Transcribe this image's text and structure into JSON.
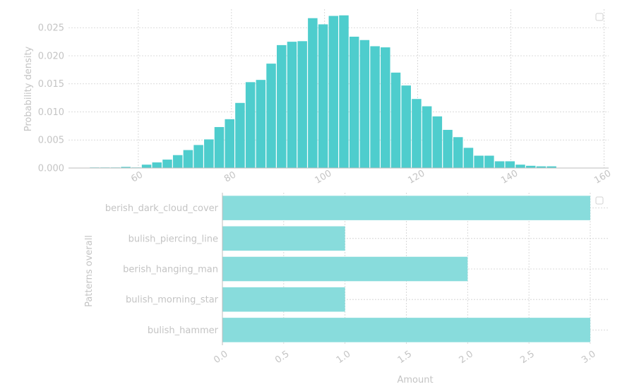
{
  "colors": {
    "histogram": "#4ecdcd",
    "bars": "#88dcdc",
    "text": "#c4c4c4"
  },
  "chart_data": [
    {
      "type": "bar",
      "subtype": "histogram",
      "ylabel": "Probability density",
      "xlabel": "",
      "xlim": [
        45,
        161
      ],
      "ylim": [
        0,
        0.0283
      ],
      "xticks": [
        60,
        80,
        100,
        120,
        140,
        160
      ],
      "xtick_labels": [
        "60",
        "80",
        "100",
        "120",
        "140",
        "160"
      ],
      "yticks": [
        0,
        0.005,
        0.01,
        0.015,
        0.02,
        0.025
      ],
      "ytick_labels": [
        "0.000",
        "0.005",
        "0.010",
        "0.015",
        "0.020",
        "0.025"
      ],
      "grid": true,
      "legend": "top-right (empty)",
      "bin_width": 2.23,
      "bin_starts": [
        49.5,
        51.73,
        53.96,
        56.19,
        58.42,
        60.65,
        62.88,
        65.11,
        67.34,
        69.57,
        71.8,
        74.03,
        76.26,
        78.49,
        80.72,
        82.95,
        85.18,
        87.41,
        89.64,
        91.87,
        94.1,
        96.33,
        98.56,
        100.79,
        103.02,
        105.25,
        107.48,
        109.71,
        111.94,
        114.17,
        116.4,
        118.63,
        120.86,
        123.09,
        125.32,
        127.55,
        129.78,
        132.01,
        134.24,
        136.47,
        138.7,
        140.93,
        143.16,
        145.39,
        147.62
      ],
      "values": [
        0.0001,
        0.0001,
        0.0001,
        0.0002,
        0.0001,
        0.0006,
        0.001,
        0.0015,
        0.0023,
        0.0032,
        0.0041,
        0.0051,
        0.0073,
        0.0087,
        0.0116,
        0.0153,
        0.0157,
        0.0186,
        0.0219,
        0.0225,
        0.0226,
        0.0267,
        0.0256,
        0.0271,
        0.0272,
        0.0234,
        0.0228,
        0.0217,
        0.0215,
        0.017,
        0.0147,
        0.0123,
        0.011,
        0.0092,
        0.0068,
        0.0055,
        0.0036,
        0.0022,
        0.0022,
        0.0012,
        0.0012,
        0.0006,
        0.0004,
        0.0003,
        0.0003
      ]
    },
    {
      "type": "bar",
      "orientation": "horizontal",
      "ylabel": "Patterns overall",
      "xlabel": "Amount",
      "categories": [
        "berish_dark_cloud_cover",
        "bulish_piercing_line",
        "berish_hanging_man",
        "bulish_morning_star",
        "bulish_hammer"
      ],
      "values": [
        3,
        1,
        2,
        1,
        3
      ],
      "xlim": [
        0,
        3.15
      ],
      "xticks": [
        0,
        0.5,
        1,
        1.5,
        2,
        2.5,
        3
      ],
      "xtick_labels": [
        "0.0",
        "0.5",
        "1.0",
        "1.5",
        "2.0",
        "2.5",
        "3.0"
      ],
      "grid": true,
      "legend": "top-right (empty)"
    }
  ]
}
